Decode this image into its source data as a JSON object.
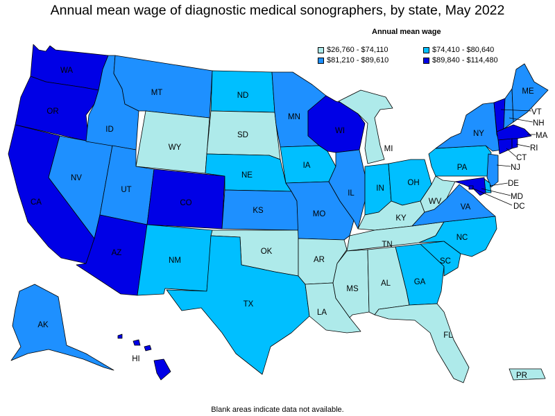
{
  "title": "Annual mean wage of diagnostic medical sonographers, by state, May 2022",
  "legend": {
    "title": "Annual mean wage",
    "items": [
      {
        "label": "$26,760 - $74,110",
        "color": "#aeeaea"
      },
      {
        "label": "$74,410 - $80,640",
        "color": "#00bfff"
      },
      {
        "label": "$81,210 - $89,610",
        "color": "#1e90ff"
      },
      {
        "label": "$89,840 - $114,480",
        "color": "#0000e6"
      }
    ]
  },
  "note": "Blank areas indicate data not available.",
  "states": {
    "WA": {
      "label": "WA",
      "tier": 3
    },
    "OR": {
      "label": "OR",
      "tier": 3
    },
    "CA": {
      "label": "CA",
      "tier": 3
    },
    "NV": {
      "label": "NV",
      "tier": 2
    },
    "ID": {
      "label": "ID",
      "tier": 2
    },
    "MT": {
      "label": "MT",
      "tier": 2
    },
    "WY": {
      "label": "WY",
      "tier": 0
    },
    "UT": {
      "label": "UT",
      "tier": 2
    },
    "AZ": {
      "label": "AZ",
      "tier": 3
    },
    "CO": {
      "label": "CO",
      "tier": 3
    },
    "NM": {
      "label": "NM",
      "tier": 1
    },
    "ND": {
      "label": "ND",
      "tier": 1
    },
    "SD": {
      "label": "SD",
      "tier": 0
    },
    "NE": {
      "label": "NE",
      "tier": 1
    },
    "KS": {
      "label": "KS",
      "tier": 2
    },
    "OK": {
      "label": "OK",
      "tier": 0
    },
    "TX": {
      "label": "TX",
      "tier": 1
    },
    "MN": {
      "label": "MN",
      "tier": 2
    },
    "IA": {
      "label": "IA",
      "tier": 1
    },
    "MO": {
      "label": "MO",
      "tier": 2
    },
    "AR": {
      "label": "AR",
      "tier": 0
    },
    "LA": {
      "label": "LA",
      "tier": 0
    },
    "WI": {
      "label": "WI",
      "tier": 3
    },
    "IL": {
      "label": "IL",
      "tier": 2
    },
    "MI": {
      "label": "MI",
      "tier": 0
    },
    "IN": {
      "label": "IN",
      "tier": 1
    },
    "OH": {
      "label": "OH",
      "tier": 1
    },
    "KY": {
      "label": "KY",
      "tier": 0
    },
    "TN": {
      "label": "TN",
      "tier": 0
    },
    "MS": {
      "label": "MS",
      "tier": 0
    },
    "AL": {
      "label": "AL",
      "tier": 0
    },
    "GA": {
      "label": "GA",
      "tier": 1
    },
    "FL": {
      "label": "FL",
      "tier": 0
    },
    "SC": {
      "label": "SC",
      "tier": 1
    },
    "NC": {
      "label": "NC",
      "tier": 1
    },
    "VA": {
      "label": "VA",
      "tier": 2
    },
    "WV": {
      "label": "WV",
      "tier": 0
    },
    "PA": {
      "label": "PA",
      "tier": 1
    },
    "NY": {
      "label": "NY",
      "tier": 2
    },
    "ME": {
      "label": "ME",
      "tier": 2
    },
    "VT": {
      "label": "VT",
      "tier": 3
    },
    "NH": {
      "label": "NH",
      "tier": 2
    },
    "MA": {
      "label": "MA",
      "tier": 3
    },
    "RI": {
      "label": "RI",
      "tier": 3
    },
    "CT": {
      "label": "CT",
      "tier": 3
    },
    "NJ": {
      "label": "NJ",
      "tier": 2
    },
    "DE": {
      "label": "DE",
      "tier": 1
    },
    "MD": {
      "label": "MD",
      "tier": 3
    },
    "DC": {
      "label": "DC",
      "tier": 3
    },
    "AK": {
      "label": "AK",
      "tier": 2
    },
    "HI": {
      "label": "HI",
      "tier": 3
    },
    "PR": {
      "label": "PR",
      "tier": 0
    }
  }
}
